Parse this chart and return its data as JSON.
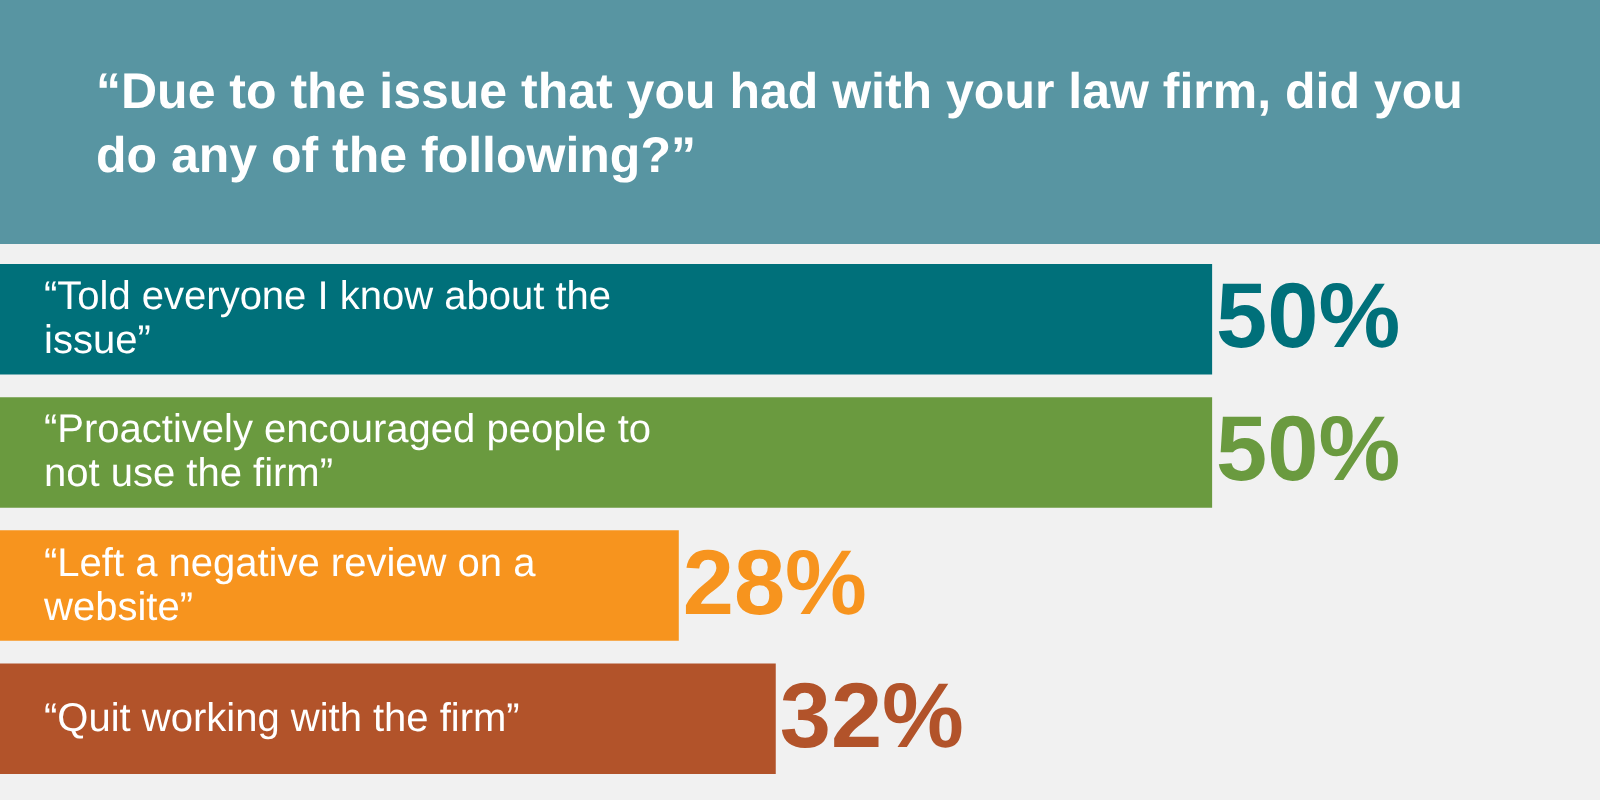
{
  "chart_data": {
    "type": "bar",
    "orientation": "horizontal",
    "title": "“Due to the issue that you had with your law firm, did you do any of the following?”",
    "categories": [
      "“Told everyone I know about the issue”",
      "“Proactively encouraged people to not use the firm”",
      "“Left a negative review on a website”",
      "“Quit working with the firm”"
    ],
    "values": [
      50,
      50,
      28,
      32
    ],
    "colors": [
      "#00707a",
      "#6a9a3f",
      "#f7941e",
      "#b2532a"
    ],
    "value_labels": [
      "50%",
      "50%",
      "28%",
      "32%"
    ]
  }
}
